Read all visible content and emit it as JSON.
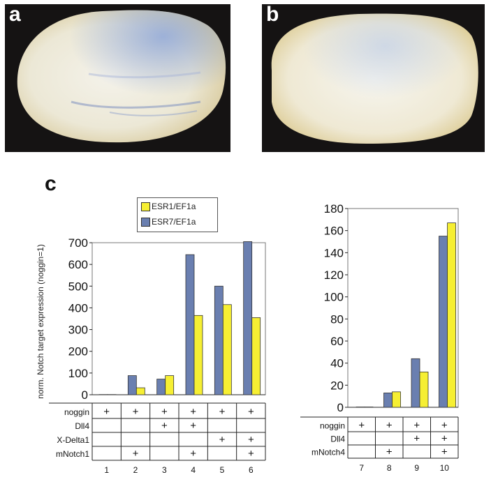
{
  "panels": {
    "a_label": "a",
    "b_label": "b",
    "c_label": "c"
  },
  "colors": {
    "esr1": "#f6ef33",
    "esr7": "#6a7fb0"
  },
  "legend": [
    {
      "name": "ESR1/EF1a",
      "color": "#f6ef33"
    },
    {
      "name": "ESR7/EF1a",
      "color": "#6a7fb0"
    }
  ],
  "chart_data": [
    {
      "type": "bar",
      "ylabel": "norm. Notch target expression (noggin=1)",
      "ylim": [
        0,
        700
      ],
      "yticks": [
        0,
        100,
        200,
        300,
        400,
        500,
        600,
        700
      ],
      "categories": [
        "1",
        "2",
        "3",
        "4",
        "5",
        "6"
      ],
      "series": [
        {
          "name": "ESR7/EF1a",
          "values": [
            1,
            88,
            72,
            645,
            500,
            705
          ]
        },
        {
          "name": "ESR1/EF1a",
          "values": [
            1,
            32,
            88,
            365,
            415,
            355
          ]
        }
      ],
      "conditions": [
        {
          "name": "noggin",
          "marks": [
            "+",
            "+",
            "+",
            "+",
            "+",
            "+"
          ]
        },
        {
          "name": "Dll4",
          "marks": [
            "",
            "",
            "+",
            "+",
            "",
            ""
          ]
        },
        {
          "name": "X-Delta1",
          "marks": [
            "",
            "",
            "",
            "",
            "+",
            "+"
          ]
        },
        {
          "name": "mNotch1",
          "marks": [
            "",
            "+",
            "",
            "+",
            "",
            "+"
          ]
        }
      ]
    },
    {
      "type": "bar",
      "ylabel": "",
      "ylim": [
        0,
        180
      ],
      "yticks": [
        0,
        20,
        40,
        60,
        80,
        100,
        120,
        140,
        160,
        180
      ],
      "categories": [
        "7",
        "8",
        "9",
        "10"
      ],
      "series": [
        {
          "name": "ESR7/EF1a",
          "values": [
            0.3,
            13,
            44,
            155
          ]
        },
        {
          "name": "ESR1/EF1a",
          "values": [
            0.3,
            14,
            32,
            167
          ]
        }
      ],
      "conditions": [
        {
          "name": "noggin",
          "marks": [
            "+",
            "+",
            "+",
            "+"
          ]
        },
        {
          "name": "Dll4",
          "marks": [
            "",
            "",
            "+",
            "+"
          ]
        },
        {
          "name": "mNotch4",
          "marks": [
            "",
            "+",
            "",
            "+"
          ]
        }
      ]
    }
  ]
}
